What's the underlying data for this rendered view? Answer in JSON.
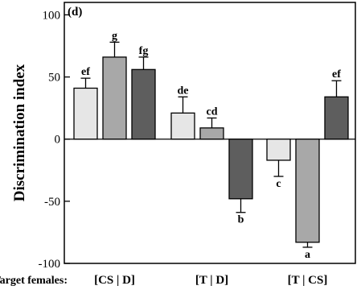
{
  "chart_data": {
    "type": "bar",
    "panel_label": "(d)",
    "ylabel": "Discrimination index",
    "xlabel_prefix": "Target females:",
    "ylim": [
      -100,
      110
    ],
    "yticks": [
      100,
      50,
      0,
      -50,
      -100
    ],
    "ytick_labels": [
      "100",
      "50",
      "0",
      "-50",
      "-100"
    ],
    "groups": [
      "[CS | D]",
      "[T | D]",
      "[T | CS]"
    ],
    "colors": [
      "#e6e6e6",
      "#a8a8a8",
      "#5e5e5e"
    ],
    "bars": [
      {
        "group": 0,
        "shade": 0,
        "value": 41,
        "error": 8,
        "sig": "ef"
      },
      {
        "group": 0,
        "shade": 1,
        "value": 66,
        "error": 12,
        "sig": "g"
      },
      {
        "group": 0,
        "shade": 2,
        "value": 56,
        "error": 10,
        "sig": "fg"
      },
      {
        "group": 1,
        "shade": 0,
        "value": 21,
        "error": 13,
        "sig": "de"
      },
      {
        "group": 1,
        "shade": 1,
        "value": 9,
        "error": 8,
        "sig": "cd"
      },
      {
        "group": 1,
        "shade": 2,
        "value": -48,
        "error": 11,
        "sig": "b"
      },
      {
        "group": 2,
        "shade": 0,
        "value": -17,
        "error": 13,
        "sig": "c"
      },
      {
        "group": 2,
        "shade": 1,
        "value": -83,
        "error": 4,
        "sig": "a"
      },
      {
        "group": 2,
        "shade": 2,
        "value": 34,
        "error": 13,
        "sig": "ef"
      }
    ]
  }
}
